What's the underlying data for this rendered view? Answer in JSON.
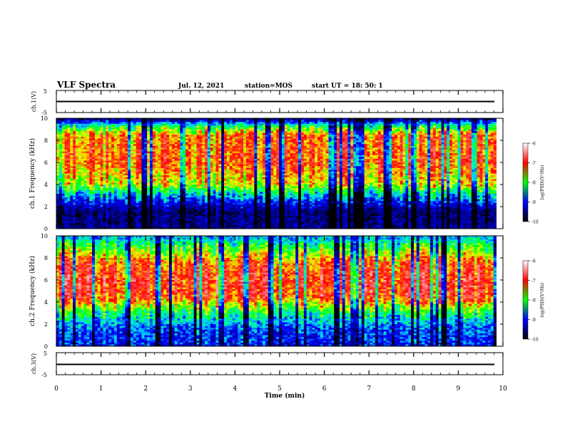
{
  "header": {
    "title": "VLF Spectra",
    "date": "Jul. 12, 2021",
    "station": "station=MOS",
    "start_ut": "start UT =  18: 50: 1"
  },
  "colorbar": {
    "label": "log(PSD)(V²/Hz)",
    "ticks": [
      "-6",
      "-7",
      "-8",
      "-9",
      "-10"
    ],
    "colors": [
      "#ffffff",
      "#ff0000",
      "#00ff00",
      "#0000ff",
      "#000000"
    ]
  },
  "chart_data": [
    {
      "type": "line",
      "panel": "ch1-waveform",
      "ylabel": "ch.1(V)",
      "ylim": [
        -5,
        5
      ],
      "yticks": [
        "5",
        "-5"
      ],
      "x": [
        0,
        10
      ],
      "values": [
        0,
        0
      ]
    },
    {
      "type": "heatmap",
      "panel": "ch1-spectrogram",
      "ylabel": "ch.1 Frequency (kHz)",
      "ylim": [
        0,
        10
      ],
      "yticks": [
        "0",
        "2",
        "4",
        "6",
        "8",
        "10"
      ],
      "xlim": [
        0,
        9.85
      ],
      "clim": [
        -10,
        -6
      ],
      "band_profile": [
        {
          "freq_khz": 0.3,
          "log_psd": -9.5
        },
        {
          "freq_khz": 1.5,
          "log_psd": -9.6
        },
        {
          "freq_khz": 3.0,
          "log_psd": -8.6
        },
        {
          "freq_khz": 4.0,
          "log_psd": -7.6
        },
        {
          "freq_khz": 6.0,
          "log_psd": -7.1
        },
        {
          "freq_khz": 8.5,
          "log_psd": -7.2
        },
        {
          "freq_khz": 9.3,
          "log_psd": -8.2
        },
        {
          "freq_khz": 9.9,
          "log_psd": -9.4
        }
      ]
    },
    {
      "type": "heatmap",
      "panel": "ch2-spectrogram",
      "ylabel": "ch.2 Frequency (kHz)",
      "ylim": [
        0,
        10
      ],
      "yticks": [
        "0",
        "2",
        "4",
        "6",
        "8",
        "10"
      ],
      "xlim": [
        0,
        9.85
      ],
      "clim": [
        -10,
        -6
      ],
      "band_profile": [
        {
          "freq_khz": 0.3,
          "log_psd": -9.0
        },
        {
          "freq_khz": 1.5,
          "log_psd": -8.9
        },
        {
          "freq_khz": 3.0,
          "log_psd": -8.2
        },
        {
          "freq_khz": 4.5,
          "log_psd": -7.0
        },
        {
          "freq_khz": 6.0,
          "log_psd": -6.9
        },
        {
          "freq_khz": 7.5,
          "log_psd": -7.1
        },
        {
          "freq_khz": 8.8,
          "log_psd": -7.9
        },
        {
          "freq_khz": 9.9,
          "log_psd": -8.6
        }
      ]
    },
    {
      "type": "line",
      "panel": "ch3-waveform",
      "ylabel": "ch.3(V)",
      "ylim": [
        -5,
        5
      ],
      "yticks": [
        "5",
        "-5"
      ],
      "x": [
        0,
        10
      ],
      "values": [
        0,
        0
      ]
    }
  ],
  "x_axis": {
    "label": "Time (min)",
    "range": [
      0,
      10
    ],
    "ticks": [
      "0",
      "1",
      "2",
      "3",
      "4",
      "5",
      "6",
      "7",
      "8",
      "9",
      "10"
    ]
  }
}
